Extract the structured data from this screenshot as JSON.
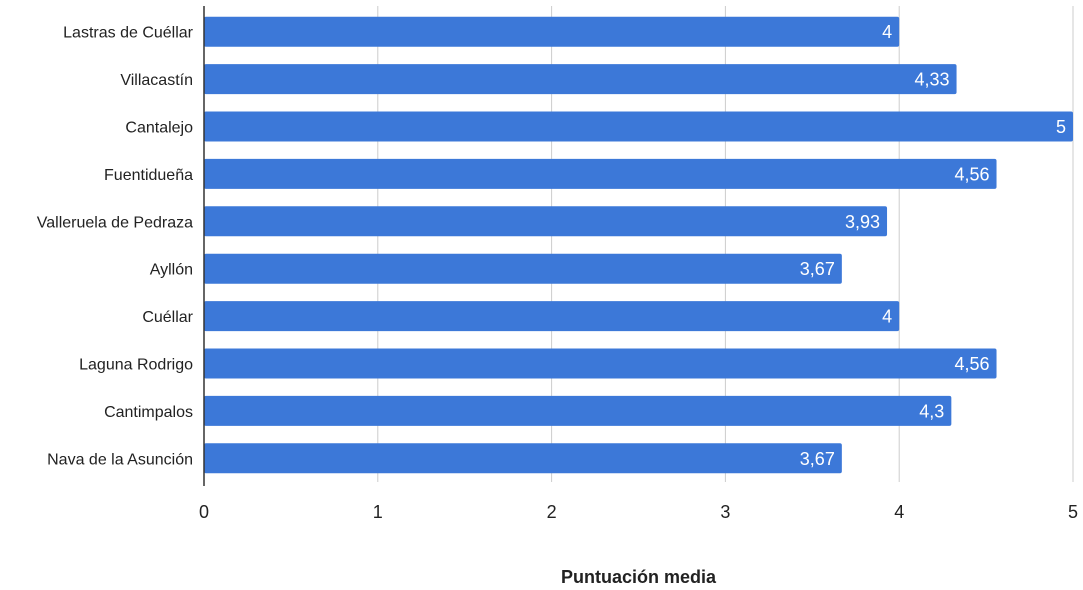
{
  "chart_data": {
    "type": "bar",
    "orientation": "horizontal",
    "title": "",
    "xlabel": "Puntuación media",
    "ylabel": "",
    "xlim": [
      0,
      5
    ],
    "x_ticks": [
      "0",
      "1",
      "2",
      "3",
      "4",
      "5"
    ],
    "grid": true,
    "legend": "none",
    "categories": [
      "Lastras de Cuéllar",
      "Villacastín",
      "Cantalejo",
      "Fuentidueña",
      "Valleruela de Pedraza",
      "Ayllón",
      "Cuéllar",
      "Laguna Rodrigo",
      "Cantimpalos",
      "Nava de la Asunción"
    ],
    "values": [
      4,
      4.33,
      5,
      4.56,
      3.93,
      3.67,
      4,
      4.56,
      4.3,
      3.67
    ],
    "data_labels": [
      "4",
      "4,33",
      "5",
      "4,56",
      "3,93",
      "3,67",
      "4",
      "4,56",
      "4,3",
      "3,67"
    ],
    "colors": {
      "bar": "#3c78d8",
      "grid": "#cccccc",
      "axis": "#333333"
    }
  }
}
